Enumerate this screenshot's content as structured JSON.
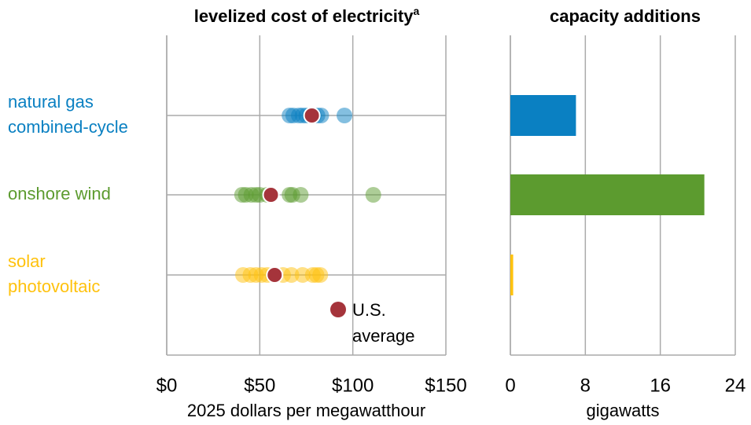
{
  "chart_data": [
    {
      "type": "strip",
      "title": "levelized cost of electricity",
      "title_note": "a",
      "categories": [
        "natural gas\ncombined-cycle",
        "onshore wind",
        "solar\nphotovoltaic"
      ],
      "colors": [
        "#0a80c2",
        "#5c9b2f",
        "#ffc20e"
      ],
      "points": [
        [
          66,
          68,
          71,
          73,
          75,
          77,
          79,
          81,
          83,
          95.5
        ],
        [
          40.5,
          42.5,
          45.5,
          48,
          50,
          54,
          66,
          67.5,
          72,
          111
        ],
        [
          41,
          45,
          48,
          51,
          54,
          57,
          62.5,
          67,
          73,
          78.5,
          80.5,
          82.5
        ]
      ],
      "averages": [
        78,
        56,
        58
      ],
      "average_color": "#a5343b",
      "average_label": "U.S.\naverage",
      "xlim": [
        0,
        150
      ],
      "xticks": [
        {
          "value": 0,
          "label": "$0"
        },
        {
          "value": 50,
          "label": "$50"
        },
        {
          "value": 100,
          "label": "$100"
        },
        {
          "value": 150,
          "label": "$150"
        }
      ],
      "xlabel": "2025 dollars per megawatthour",
      "grid": true
    },
    {
      "type": "bar",
      "title": "capacity additions",
      "values": [
        7,
        20.7,
        0.3
      ],
      "colors": [
        "#0a80c2",
        "#5c9b2f",
        "#ffc20e"
      ],
      "xlim": [
        0,
        24
      ],
      "xticks": [
        0,
        8,
        16,
        24
      ],
      "xlabel": "gigawatts",
      "grid": true
    }
  ]
}
